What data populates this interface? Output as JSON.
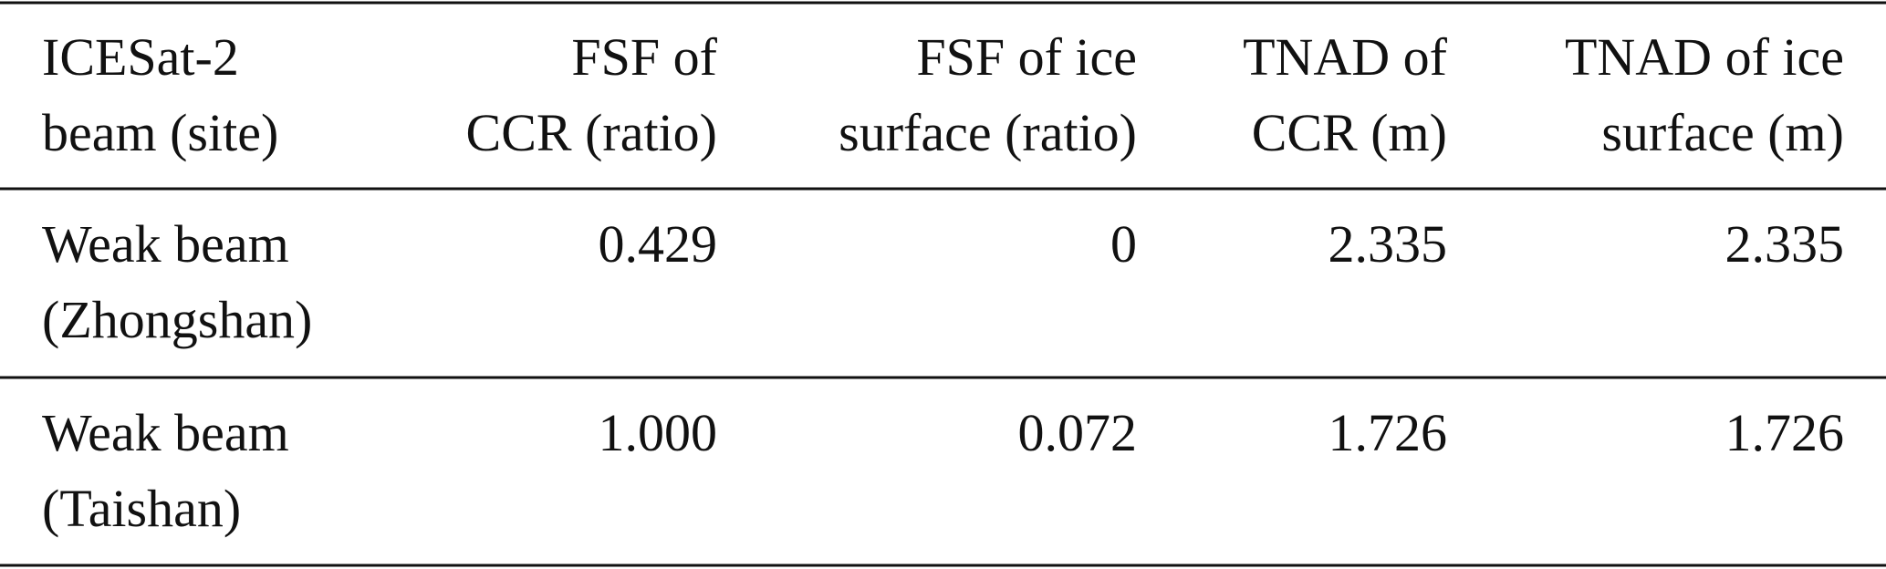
{
  "table": {
    "header": [
      [
        "ICESat-2",
        "beam (site)"
      ],
      [
        "FSF of",
        "CCR (ratio)"
      ],
      [
        "FSF of ice",
        "surface (ratio)"
      ],
      [
        "TNAD of",
        "CCR (m)"
      ],
      [
        "TNAD of ice",
        "surface (m)"
      ]
    ],
    "rows": [
      [
        [
          "Weak beam",
          "(Zhongshan)"
        ],
        [
          "0.429"
        ],
        [
          "0"
        ],
        [
          "2.335"
        ],
        [
          "2.335"
        ]
      ],
      [
        [
          "Weak beam",
          "(Taishan)"
        ],
        [
          "1.000"
        ],
        [
          "0.072"
        ],
        [
          "1.726"
        ],
        [
          "1.726"
        ]
      ]
    ]
  }
}
